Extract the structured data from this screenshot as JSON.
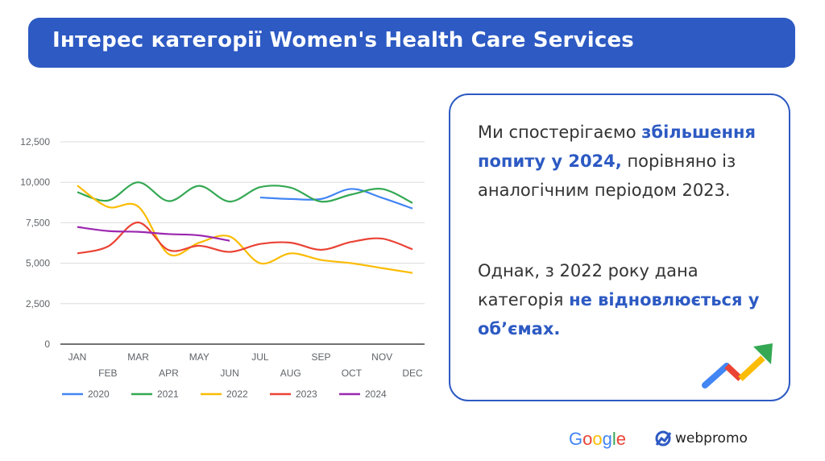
{
  "header": {
    "title": "Інтерес категорії Women's Health Care Services"
  },
  "chart_data": {
    "type": "line",
    "title": "",
    "xlabel": "",
    "ylabel": "",
    "categories": [
      "JAN",
      "FEB",
      "MAR",
      "APR",
      "MAY",
      "JUN",
      "JUL",
      "AUG",
      "SEP",
      "OCT",
      "NOV",
      "DEC"
    ],
    "y_ticks": [
      "0",
      "2,500",
      "5,000",
      "7,500",
      "10,000",
      "12,500"
    ],
    "ylim": [
      0,
      12500
    ],
    "grid": true,
    "legend": "bottom",
    "series": [
      {
        "name": "2020",
        "color": "#4285f4",
        "values": [
          null,
          null,
          null,
          null,
          null,
          null,
          9060,
          8970,
          8970,
          9590,
          9040,
          8380
        ]
      },
      {
        "name": "2021",
        "color": "#34a853",
        "values": [
          9390,
          8870,
          10000,
          8840,
          9780,
          8810,
          9700,
          9670,
          8810,
          9250,
          9590,
          8725
        ]
      },
      {
        "name": "2022",
        "color": "#fbbc04",
        "values": [
          9800,
          8480,
          8500,
          5560,
          6270,
          6650,
          5000,
          5610,
          5200,
          5000,
          4700,
          4400
        ]
      },
      {
        "name": "2023",
        "color": "#ea4335",
        "values": [
          5610,
          6030,
          7520,
          5810,
          6080,
          5700,
          6190,
          6270,
          5830,
          6320,
          6520,
          5860
        ]
      },
      {
        "name": "2024",
        "color": "#9c27b0",
        "values": [
          7240,
          6990,
          6940,
          6800,
          6720,
          6390,
          null,
          null,
          null,
          null,
          null,
          null
        ]
      }
    ]
  },
  "panel": {
    "p1_a": "Ми спостерігаємо ",
    "p1_b": "збільшення попиту у 2024,",
    "p1_c": " порівняно із аналогічним періодом 2023.",
    "p2_a": "Однак, з 2022 року дана категорія ",
    "p2_b": "не відновлюється у об’ємах."
  },
  "footer": {
    "google": "Google",
    "webpromo": "webpromo"
  },
  "colors": {
    "brand": "#2d5ac3"
  }
}
